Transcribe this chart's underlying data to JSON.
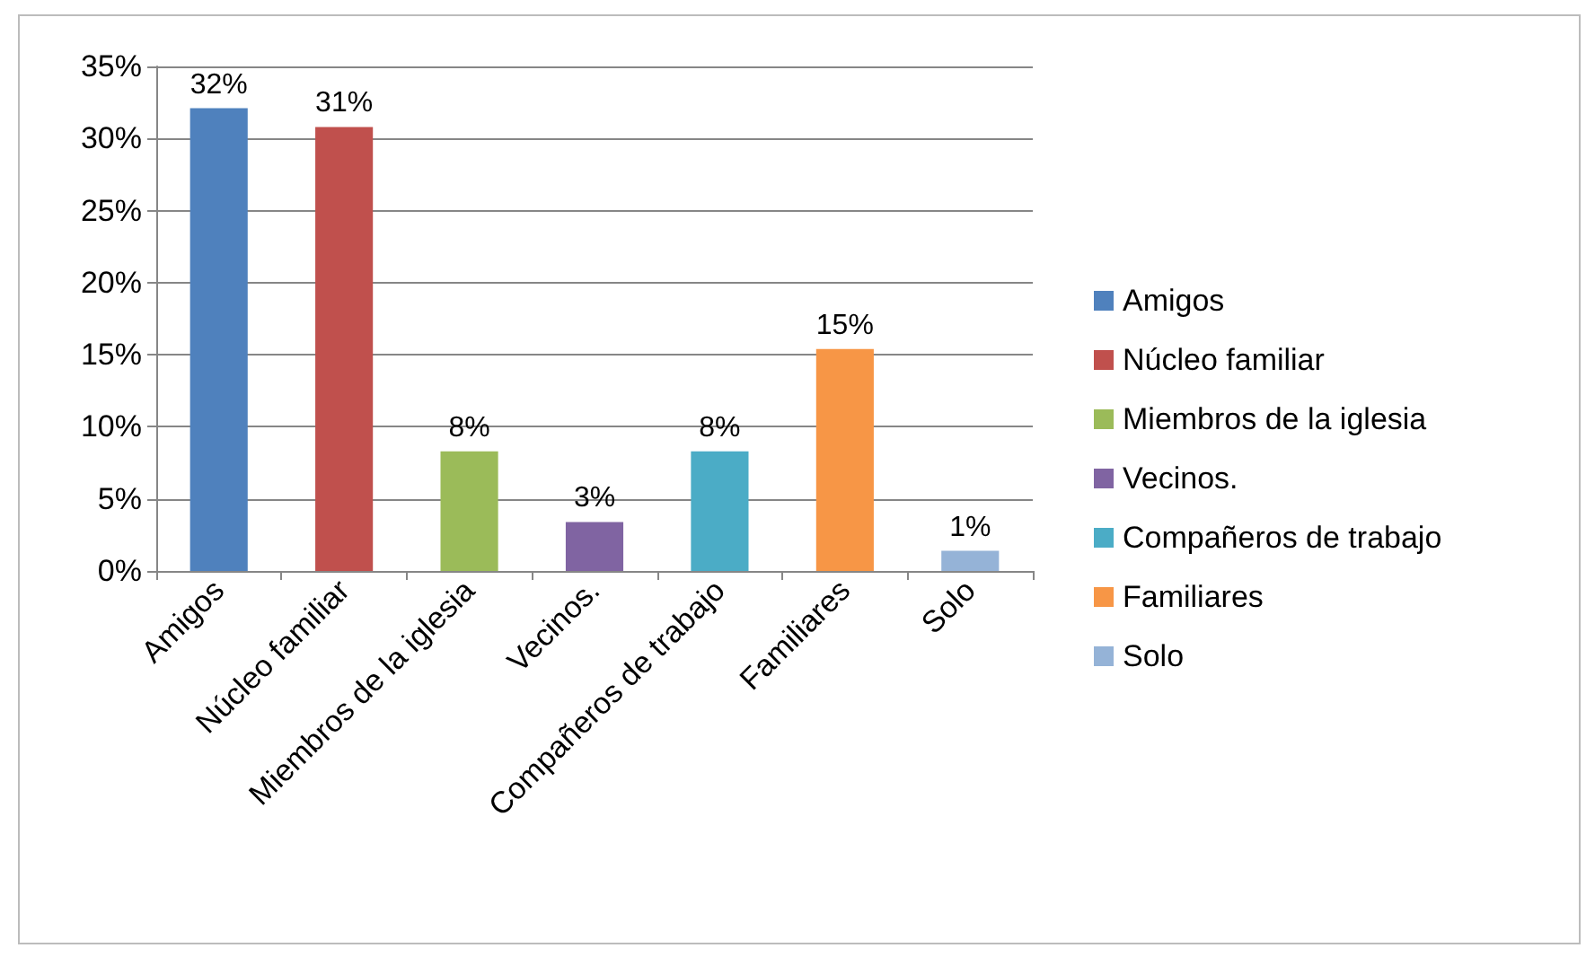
{
  "chart_data": {
    "type": "bar",
    "categories": [
      "Amigos",
      "Núcleo familiar",
      "Miembros de la iglesia",
      "Vecinos.",
      "Compañeros de trabajo",
      "Familiares",
      "Solo"
    ],
    "stacked": true,
    "series": [
      {
        "name": "Amigos",
        "color": "#4f81bd",
        "values": [
          32.1,
          null,
          null,
          null,
          null,
          null,
          null
        ],
        "value_labels": [
          "32%",
          null,
          null,
          null,
          null,
          null,
          null
        ]
      },
      {
        "name": "Núcleo familiar",
        "color": "#c0504d",
        "values": [
          null,
          30.8,
          null,
          null,
          null,
          null,
          null
        ],
        "value_labels": [
          null,
          "31%",
          null,
          null,
          null,
          null,
          null
        ]
      },
      {
        "name": "Miembros de la iglesia",
        "color": "#9bbb59",
        "values": [
          null,
          null,
          8.3,
          null,
          null,
          null,
          null
        ],
        "value_labels": [
          null,
          null,
          "8%",
          null,
          null,
          null,
          null
        ]
      },
      {
        "name": "Vecinos.",
        "color": "#8064a2",
        "values": [
          null,
          null,
          null,
          3.4,
          null,
          null,
          null
        ],
        "value_labels": [
          null,
          null,
          null,
          "3%",
          null,
          null,
          null
        ]
      },
      {
        "name": "Compañeros de trabajo",
        "color": "#4bacc6",
        "values": [
          null,
          null,
          null,
          null,
          8.3,
          null,
          null
        ],
        "value_labels": [
          null,
          null,
          null,
          null,
          "8%",
          null,
          null
        ]
      },
      {
        "name": "Familiares",
        "color": "#f79646",
        "values": [
          null,
          null,
          null,
          null,
          null,
          15.4,
          null
        ],
        "value_labels": [
          null,
          null,
          null,
          null,
          null,
          "15%",
          null
        ]
      },
      {
        "name": "Solo",
        "color": "#95b3d7",
        "values": [
          null,
          null,
          null,
          null,
          null,
          null,
          1.4
        ],
        "value_labels": [
          null,
          null,
          null,
          null,
          null,
          null,
          "1%"
        ]
      }
    ],
    "ylim": [
      0,
      35
    ],
    "yticks": [
      {
        "value": 0,
        "label": "0%"
      },
      {
        "value": 5,
        "label": "5%"
      },
      {
        "value": 10,
        "label": "10%"
      },
      {
        "value": 15,
        "label": "15%"
      },
      {
        "value": 20,
        "label": "20%"
      },
      {
        "value": 25,
        "label": "25%"
      },
      {
        "value": 30,
        "label": "30%"
      },
      {
        "value": 35,
        "label": "35%"
      }
    ],
    "grid": "y",
    "legend": "right"
  }
}
